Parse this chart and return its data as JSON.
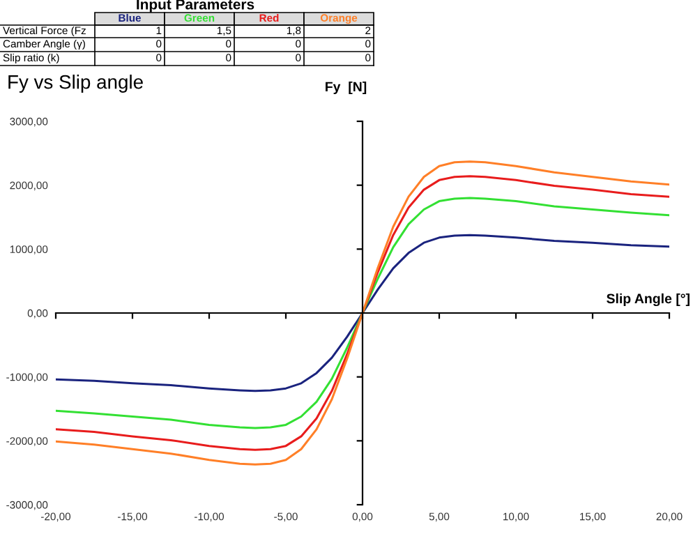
{
  "chart_data": {
    "type": "line",
    "title": "Fy vs Slip angle",
    "xlabel": "Slip Angle [°]",
    "ylabel": "Fy  [N]",
    "x": [
      -20,
      -17.5,
      -15,
      -12.5,
      -10,
      -8,
      -7,
      -6,
      -5,
      -4,
      -3,
      -2,
      -1,
      0,
      1,
      2,
      3,
      4,
      5,
      6,
      7,
      8,
      10,
      12.5,
      15,
      17.5,
      20
    ],
    "series": [
      {
        "name": "Blue",
        "color": "#1a237e",
        "values": [
          -1040,
          -1060,
          -1100,
          -1130,
          -1180,
          -1210,
          -1220,
          -1210,
          -1180,
          -1100,
          -940,
          -700,
          -370,
          0,
          370,
          700,
          940,
          1100,
          1180,
          1210,
          1220,
          1210,
          1180,
          1130,
          1100,
          1060,
          1040
        ]
      },
      {
        "name": "Green",
        "color": "#33e033",
        "values": [
          -1530,
          -1570,
          -1620,
          -1670,
          -1750,
          -1790,
          -1800,
          -1790,
          -1750,
          -1620,
          -1390,
          -1030,
          -540,
          0,
          540,
          1030,
          1390,
          1620,
          1750,
          1790,
          1800,
          1790,
          1750,
          1670,
          1620,
          1570,
          1530
        ]
      },
      {
        "name": "Red",
        "color": "#e81c1c",
        "values": [
          -1820,
          -1860,
          -1930,
          -1990,
          -2080,
          -2130,
          -2140,
          -2130,
          -2080,
          -1930,
          -1650,
          -1220,
          -640,
          0,
          640,
          1220,
          1650,
          1930,
          2080,
          2130,
          2140,
          2130,
          2080,
          1990,
          1930,
          1860,
          1820
        ]
      },
      {
        "name": "Orange",
        "color": "#ff7f27",
        "values": [
          -2010,
          -2060,
          -2130,
          -2200,
          -2300,
          -2360,
          -2370,
          -2360,
          -2300,
          -2130,
          -1820,
          -1350,
          -710,
          0,
          710,
          1350,
          1820,
          2130,
          2300,
          2360,
          2370,
          2360,
          2300,
          2200,
          2130,
          2060,
          2010
        ]
      }
    ],
    "xlim": [
      -20,
      20
    ],
    "ylim": [
      -3000,
      3000
    ],
    "xticks": [
      {
        "value": -20,
        "label": "-20,00"
      },
      {
        "value": -15,
        "label": "-15,00"
      },
      {
        "value": -10,
        "label": "-10,00"
      },
      {
        "value": -5,
        "label": "-5,00"
      },
      {
        "value": 0,
        "label": "0,00"
      },
      {
        "value": 5,
        "label": "5,00"
      },
      {
        "value": 10,
        "label": "10,00"
      },
      {
        "value": 15,
        "label": "15,00"
      },
      {
        "value": 20,
        "label": "20,00"
      }
    ],
    "yticks": [
      {
        "value": -3000,
        "label": "-3000,00"
      },
      {
        "value": -2000,
        "label": "-2000,00"
      },
      {
        "value": -1000,
        "label": "-1000,00"
      },
      {
        "value": 0,
        "label": "0,00"
      },
      {
        "value": 1000,
        "label": "1000,00"
      },
      {
        "value": 2000,
        "label": "2000,00"
      },
      {
        "value": 3000,
        "label": "3000,00"
      }
    ],
    "marker": "none",
    "line_style": "solid",
    "annotations": [
      "Input Parameters",
      "Vertical Force (Fz",
      "1",
      "1,5",
      "1,8",
      "2",
      "Camber Angle (γ)",
      "0",
      "0",
      "0",
      "0",
      "Slip ratio (k)",
      "0",
      "0",
      "0",
      "0"
    ]
  }
}
